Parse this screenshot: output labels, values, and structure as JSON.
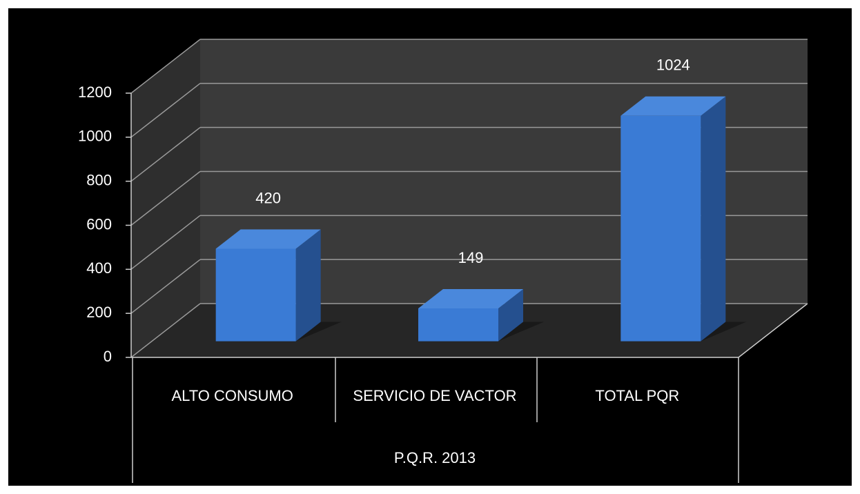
{
  "chart_data": {
    "type": "bar3d",
    "categories": [
      "ALTO CONSUMO",
      "SERVICIO DE VACTOR",
      "TOTAL PQR"
    ],
    "group_label": "P.Q.R. 2013",
    "values": [
      420,
      149,
      1024
    ],
    "color": "#3a7bd5",
    "ylim": [
      0,
      1200
    ],
    "yticks": [
      0,
      200,
      400,
      600,
      800,
      1000,
      1200
    ],
    "grid": true
  }
}
